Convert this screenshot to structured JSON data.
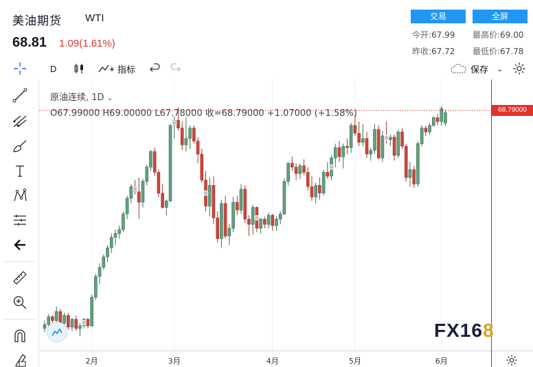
{
  "header": {
    "title": "美油期货",
    "code": "WTI",
    "price": "68.81",
    "change": "1.09(1.61%)",
    "trade_button": "交易",
    "fullscreen_button": "全屏",
    "open_label": "今开:",
    "open_value": "67.99",
    "high_label": "最高价:",
    "high_value": "69.00",
    "prev_close_label": "昨收:",
    "prev_close_value": "67.72",
    "low_label": "最低价:",
    "low_value": "67.78"
  },
  "toolbar": {
    "interval": "D",
    "indicators_label": "指标",
    "save_label": "保存"
  },
  "chart_legend": {
    "symbol": "原油连续",
    "timeframe": "1D",
    "ohlc_text": "O67.99000  H69.00000  L67.78000  收=68.79000  +1.07000 (+1.58%)",
    "last_price_tag": "68.79000"
  },
  "colors": {
    "up": "#26a69a",
    "up_fill": "#5fa17f",
    "down": "#c9463d",
    "accent": "#2196f3",
    "change_red": "#e0332d"
  },
  "logo": {
    "text": "FX16",
    "eight": "8"
  },
  "icons": [
    "crosshair-icon",
    "trendline-icon",
    "pitchfork-icon",
    "brush-icon",
    "text-icon",
    "pattern-icon",
    "prediction-icon",
    "back-arrow-icon",
    "ruler-icon",
    "zoom-in-icon",
    "magnet-icon",
    "lock-draw-icon",
    "candles-icon",
    "undo-icon",
    "redo-icon",
    "cloud-icon",
    "settings-icon"
  ],
  "chart_data": {
    "type": "candlestick",
    "x_ticks": [
      "2月",
      "3月",
      "4月",
      "5月",
      "6月"
    ],
    "x_tick_index": [
      12,
      33,
      58,
      79,
      101
    ],
    "candles": [
      [
        52.2,
        52.8,
        51.9,
        52.5
      ],
      [
        52.5,
        53.3,
        52.3,
        53.1
      ],
      [
        53.1,
        53.2,
        52.5,
        52.8
      ],
      [
        52.8,
        53.9,
        52.6,
        53.5
      ],
      [
        53.5,
        53.7,
        52.4,
        52.6
      ],
      [
        52.6,
        53.4,
        52.3,
        53.2
      ],
      [
        53.2,
        53.4,
        52.1,
        52.3
      ],
      [
        52.3,
        53.0,
        52.0,
        52.9
      ],
      [
        52.9,
        53.2,
        52.0,
        52.2
      ],
      [
        52.2,
        52.6,
        51.6,
        52.4
      ],
      [
        52.4,
        53.0,
        52.2,
        52.9
      ],
      [
        52.9,
        53.0,
        52.2,
        52.4
      ],
      [
        52.4,
        54.8,
        52.3,
        54.6
      ],
      [
        54.6,
        56.4,
        54.4,
        56.2
      ],
      [
        56.2,
        57.2,
        55.6,
        56.9
      ],
      [
        56.9,
        57.9,
        56.7,
        57.7
      ],
      [
        57.7,
        58.6,
        57.3,
        58.4
      ],
      [
        58.4,
        59.5,
        58.0,
        59.2
      ],
      [
        59.2,
        59.8,
        58.6,
        59.5
      ],
      [
        59.5,
        60.1,
        59.1,
        59.8
      ],
      [
        59.8,
        61.2,
        59.6,
        61.0
      ],
      [
        61.0,
        62.4,
        60.6,
        62.2
      ],
      [
        62.2,
        63.3,
        61.8,
        63.1
      ],
      [
        63.1,
        63.6,
        62.5,
        62.7
      ],
      [
        62.7,
        63.8,
        60.6,
        61.9
      ],
      [
        61.9,
        63.7,
        61.5,
        63.5
      ],
      [
        63.5,
        64.8,
        63.2,
        64.6
      ],
      [
        64.6,
        65.9,
        64.3,
        65.8
      ],
      [
        65.8,
        66.1,
        63.9,
        64.2
      ],
      [
        64.2,
        64.4,
        62.3,
        62.6
      ],
      [
        62.6,
        63.3,
        61.4,
        61.5
      ],
      [
        61.5,
        62.1,
        60.9,
        62.0
      ],
      [
        62.0,
        67.9,
        61.9,
        67.8
      ],
      [
        67.8,
        68.5,
        66.8,
        68.2
      ],
      [
        68.2,
        69.2,
        67.4,
        67.6
      ],
      [
        67.6,
        68.1,
        65.9,
        66.3
      ],
      [
        66.3,
        68.4,
        65.8,
        66.8
      ],
      [
        66.8,
        67.8,
        66.0,
        67.6
      ],
      [
        67.6,
        67.8,
        66.4,
        66.6
      ],
      [
        66.6,
        66.9,
        64.9,
        65.6
      ],
      [
        65.6,
        66.0,
        63.4,
        63.6
      ],
      [
        63.6,
        64.3,
        61.2,
        61.6
      ],
      [
        61.6,
        63.8,
        60.8,
        63.2
      ],
      [
        63.2,
        63.9,
        60.2,
        60.7
      ],
      [
        60.7,
        61.2,
        58.8,
        59.1
      ],
      [
        59.1,
        62.1,
        58.4,
        61.8
      ],
      [
        61.8,
        62.4,
        59.1,
        59.3
      ],
      [
        59.3,
        60.2,
        58.6,
        59.9
      ],
      [
        59.9,
        62.3,
        59.6,
        61.9
      ],
      [
        61.9,
        62.4,
        60.9,
        61.3
      ],
      [
        61.3,
        63.3,
        61.0,
        62.9
      ],
      [
        62.9,
        63.2,
        60.3,
        60.6
      ],
      [
        60.6,
        60.9,
        59.3,
        60.2
      ],
      [
        60.2,
        61.7,
        59.4,
        61.5
      ],
      [
        61.5,
        61.6,
        59.6,
        59.9
      ],
      [
        59.9,
        60.7,
        59.5,
        60.6
      ],
      [
        60.6,
        60.8,
        59.9,
        60.2
      ],
      [
        60.2,
        61.1,
        59.9,
        60.9
      ],
      [
        60.9,
        61.0,
        59.7,
        60.1
      ],
      [
        60.1,
        60.8,
        59.7,
        60.6
      ],
      [
        60.6,
        61.2,
        60.2,
        61.0
      ],
      [
        61.0,
        63.7,
        60.9,
        63.5
      ],
      [
        63.5,
        65.0,
        63.2,
        64.9
      ],
      [
        64.9,
        65.4,
        64.3,
        64.6
      ],
      [
        64.6,
        64.9,
        63.6,
        64.1
      ],
      [
        64.1,
        64.9,
        63.7,
        64.7
      ],
      [
        64.7,
        65.2,
        64.0,
        64.2
      ],
      [
        64.2,
        64.6,
        62.8,
        63.1
      ],
      [
        63.1,
        63.9,
        62.0,
        62.3
      ],
      [
        62.3,
        63.4,
        61.8,
        63.2
      ],
      [
        63.2,
        63.8,
        62.1,
        62.6
      ],
      [
        62.6,
        64.4,
        62.4,
        64.2
      ],
      [
        64.2,
        65.0,
        63.7,
        63.9
      ],
      [
        63.9,
        65.5,
        63.6,
        65.3
      ],
      [
        65.3,
        66.4,
        64.6,
        66.1
      ],
      [
        66.1,
        66.6,
        65.0,
        65.4
      ],
      [
        65.4,
        66.4,
        64.5,
        66.2
      ],
      [
        66.2,
        66.8,
        65.6,
        66.1
      ],
      [
        66.1,
        68.0,
        65.7,
        67.8
      ],
      [
        67.8,
        68.6,
        67.0,
        67.2
      ],
      [
        67.2,
        68.1,
        66.2,
        66.5
      ],
      [
        66.5,
        67.9,
        66.2,
        66.8
      ],
      [
        66.8,
        67.3,
        65.3,
        65.6
      ],
      [
        65.6,
        66.1,
        65.1,
        65.9
      ],
      [
        65.9,
        67.9,
        65.6,
        67.5
      ],
      [
        67.5,
        67.8,
        65.2,
        65.3
      ],
      [
        65.3,
        67.4,
        65.0,
        67.0
      ],
      [
        67.0,
        68.1,
        66.4,
        66.7
      ],
      [
        66.7,
        67.1,
        66.2,
        66.9
      ],
      [
        66.9,
        67.1,
        65.1,
        65.5
      ],
      [
        65.5,
        67.5,
        65.3,
        67.3
      ],
      [
        67.3,
        67.6,
        66.0,
        66.2
      ],
      [
        66.2,
        66.4,
        63.5,
        63.8
      ],
      [
        63.8,
        65.0,
        63.1,
        64.4
      ],
      [
        64.4,
        64.7,
        63.0,
        63.3
      ],
      [
        63.3,
        66.6,
        63.1,
        66.4
      ],
      [
        66.4,
        67.8,
        66.2,
        67.6
      ],
      [
        67.6,
        67.8,
        67.0,
        67.3
      ],
      [
        67.3,
        68.0,
        67.1,
        67.8
      ],
      [
        67.8,
        68.5,
        67.7,
        68.4
      ],
      [
        68.4,
        68.7,
        67.8,
        68.1
      ],
      [
        68.1,
        69.3,
        67.8,
        69.1
      ],
      [
        67.99,
        69.0,
        67.78,
        68.79
      ]
    ],
    "markers_at_index": [
      10,
      23,
      33,
      41,
      54,
      73,
      87
    ],
    "y_range": [
      50.5,
      70.8
    ]
  }
}
